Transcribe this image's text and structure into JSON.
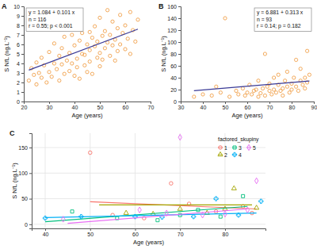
{
  "chart_data": [
    {
      "type": "scatter",
      "title": "A",
      "x_label": "Age (years)",
      "y_label": "S NfL (ng.L⁻¹)",
      "annotations": [
        "y = 1.084 + 0.101 x",
        "n = 116",
        "r = 0.55; p < 0.001"
      ],
      "xlim": [
        20,
        70
      ],
      "xticks": [
        20,
        30,
        40,
        50,
        60,
        70
      ],
      "ylim": [
        0,
        10
      ],
      "yticks": [
        0,
        1,
        2,
        3,
        4,
        5,
        6,
        7,
        8,
        9,
        10
      ],
      "grid": false,
      "series": [
        {
          "type": "scatter",
          "marker": "circle",
          "color": "#f0a04b",
          "x": [
            22,
            23,
            24,
            25,
            25,
            26,
            27,
            27,
            28,
            29,
            30,
            30,
            31,
            32,
            32,
            33,
            34,
            34,
            35,
            35,
            36,
            36,
            37,
            38,
            38,
            39,
            39,
            40,
            40,
            41,
            41,
            42,
            42,
            43,
            43,
            44,
            44,
            45,
            46,
            45,
            46,
            46,
            47,
            47,
            48,
            48,
            49,
            49,
            50,
            50,
            50,
            51,
            51,
            52,
            52,
            53,
            53,
            54,
            54,
            55,
            55,
            56,
            56,
            57,
            57,
            58,
            58,
            59,
            60,
            60,
            61,
            62,
            62,
            63,
            64,
            65
          ],
          "values": [
            2.2,
            3.5,
            2.8,
            4.1,
            1.8,
            3.0,
            2.5,
            4.6,
            3.8,
            2.0,
            5.2,
            3.1,
            2.6,
            4.0,
            6.1,
            3.4,
            2.2,
            4.8,
            3.9,
            5.6,
            2.9,
            6.8,
            4.3,
            3.2,
            5.1,
            7.0,
            4.0,
            2.7,
            5.9,
            4.5,
            3.6,
            6.4,
            2.4,
            5.0,
            7.2,
            3.8,
            4.9,
            6.0,
            7.3,
            3.1,
            5.4,
            4.2,
            6.7,
            2.9,
            5.8,
            7.9,
            4.6,
            6.3,
            5.1,
            8.8,
            3.7,
            6.9,
            4.4,
            7.4,
            5.6,
            9.6,
            6.2,
            4.8,
            7.0,
            5.9,
            8.4,
            6.5,
            4.3,
            7.7,
            5.3,
            9.1,
            6.0,
            7.2,
            5.5,
            8.0,
            6.6,
            9.4,
            5.0,
            7.5,
            6.3,
            8.6
          ]
        },
        {
          "type": "line",
          "color": "#3a3a96",
          "x": [
            22,
            65
          ],
          "values": [
            3.3,
            7.6
          ]
        }
      ]
    },
    {
      "type": "scatter",
      "title": "B",
      "x_label": "Age (years)",
      "y_label": "S NfL (ng.L⁻¹)",
      "annotations": [
        "y = 6.881 + 0.313 x",
        "n = 93",
        "r = 0.14; p = 0.182"
      ],
      "xlim": [
        30,
        90
      ],
      "xticks": [
        30,
        40,
        50,
        60,
        70,
        80,
        90
      ],
      "ylim": [
        0,
        160
      ],
      "yticks": [
        0,
        20,
        40,
        60,
        80,
        100,
        120,
        140,
        160
      ],
      "grid": false,
      "series": [
        {
          "type": "scatter",
          "marker": "circle",
          "color": "#f0a04b",
          "x": [
            36,
            40,
            44,
            46,
            48,
            50,
            52,
            55,
            56,
            58,
            59,
            60,
            61,
            62,
            63,
            64,
            65,
            65,
            66,
            67,
            68,
            68,
            69,
            70,
            70,
            71,
            72,
            72,
            73,
            74,
            74,
            75,
            76,
            76,
            77,
            78,
            78,
            79,
            80,
            80,
            81,
            82,
            82,
            83,
            84,
            84,
            85,
            86,
            86,
            87,
            87,
            88
          ],
          "values": [
            8,
            12,
            10,
            25,
            15,
            140,
            8,
            18,
            12,
            22,
            10,
            15,
            28,
            12,
            18,
            20,
            8,
            35,
            14,
            22,
            80,
            10,
            25,
            18,
            30,
            12,
            40,
            20,
            15,
            28,
            45,
            18,
            22,
            10,
            35,
            25,
            50,
            15,
            30,
            20,
            40,
            70,
            25,
            18,
            35,
            55,
            28,
            40,
            22,
            85,
            32,
            45
          ]
        },
        {
          "type": "line",
          "color": "#3a3a96",
          "x": [
            36,
            88
          ],
          "values": [
            18.1,
            34.4
          ]
        }
      ]
    },
    {
      "type": "scatter",
      "title": "C",
      "x_label": "Age (years)",
      "y_label": "S NfL (ng.L⁻¹)",
      "legend_title": "factored_skupiny",
      "legend": "top-right",
      "xlim": [
        37,
        89
      ],
      "xticks": [
        40,
        50,
        60,
        70,
        80
      ],
      "ylim": [
        -8,
        178
      ],
      "yticks": [
        0,
        50,
        100,
        150
      ],
      "grid": true,
      "series": [
        {
          "name": "1",
          "color": "#F8766D",
          "marker": "circle",
          "x": [
            50,
            55,
            62,
            68,
            72,
            78,
            84,
            86
          ],
          "values": [
            140,
            18,
            12,
            80,
            40,
            25,
            35,
            22
          ],
          "fit": {
            "x": [
              50,
              87
            ],
            "values": [
              44,
              30
            ]
          }
        },
        {
          "name": "2",
          "color": "#A3A500",
          "marker": "triangle",
          "x": [
            58,
            64,
            70,
            76,
            80,
            82,
            87
          ],
          "values": [
            22,
            20,
            30,
            22,
            30,
            70,
            32
          ],
          "fit": {
            "x": [
              52,
              86
            ],
            "values": [
              38,
              38
            ]
          }
        },
        {
          "name": "3",
          "color": "#00BF7D",
          "marker": "square",
          "x": [
            46,
            56,
            65,
            70,
            74,
            79,
            84
          ],
          "values": [
            25,
            12,
            8,
            18,
            28,
            15,
            55
          ],
          "fit": {
            "x": [
              40,
              85
            ],
            "values": [
              5,
              35
            ]
          }
        },
        {
          "name": "4",
          "color": "#00B0F6",
          "marker": "cross",
          "x": [
            40,
            48,
            60,
            66,
            73,
            78,
            83,
            88
          ],
          "values": [
            12,
            15,
            15,
            14,
            15,
            50,
            18,
            45
          ],
          "fit": {
            "x": [
              40,
              87
            ],
            "values": [
              13,
              22
            ]
          }
        },
        {
          "name": "5",
          "color": "#E76BF3",
          "marker": "diamond",
          "x": [
            44,
            61,
            67,
            70,
            75,
            80,
            85,
            87
          ],
          "values": [
            10,
            28,
            22,
            170,
            18,
            20,
            28,
            85
          ],
          "fit": {
            "x": [
              45,
              85
            ],
            "values": [
              2,
              30
            ]
          }
        }
      ]
    }
  ]
}
